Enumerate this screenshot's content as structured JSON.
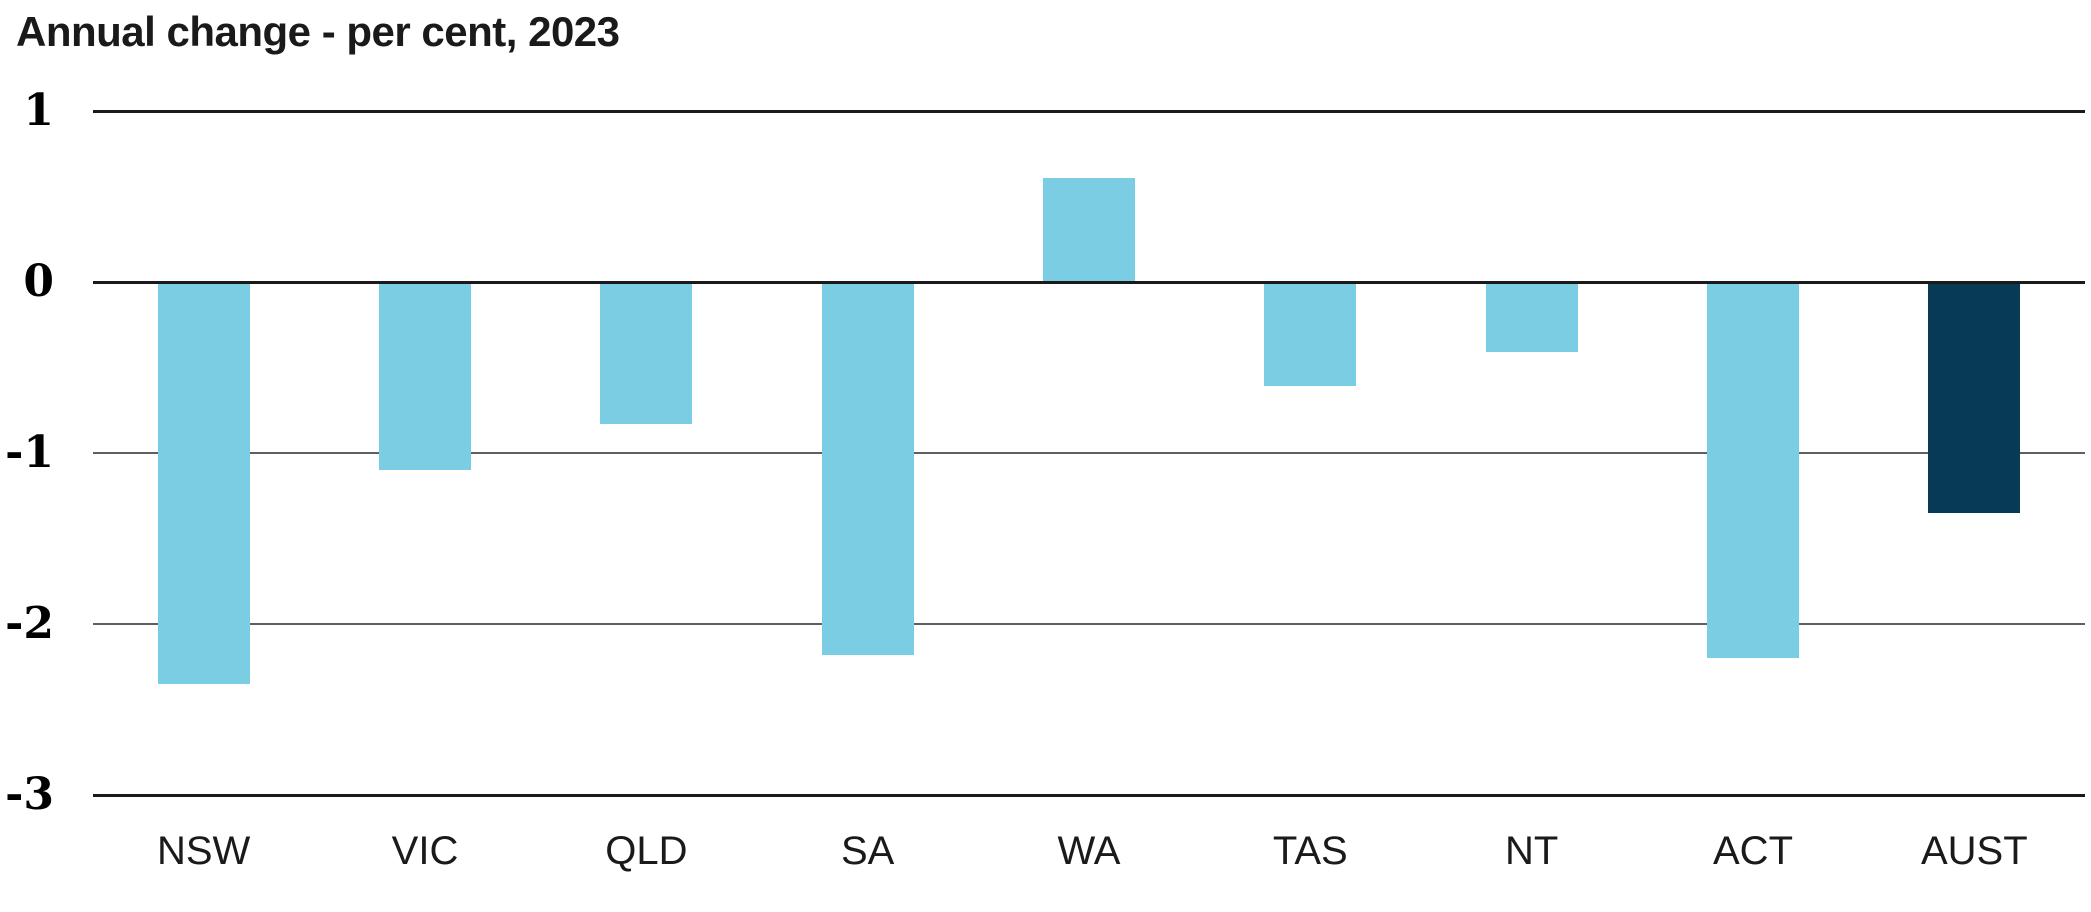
{
  "chart_data": {
    "type": "bar",
    "title": "Annual change - per cent, 2023",
    "categories": [
      "NSW",
      "VIC",
      "QLD",
      "SA",
      "WA",
      "TAS",
      "NT",
      "ACT",
      "AUST"
    ],
    "values": [
      -2.35,
      -1.1,
      -0.83,
      -2.18,
      0.61,
      -0.61,
      -0.41,
      -2.2,
      -1.35
    ],
    "xlabel": "",
    "ylabel": "",
    "ylim": [
      -3,
      1
    ],
    "yticks": [
      1,
      0,
      -1,
      -2,
      -3
    ],
    "grid": true,
    "legend_position": "none",
    "bar_color": "#7ACDE2",
    "highlight_category": "AUST",
    "highlight_color": "#073B55",
    "gridline_minor_color": "#5F5F5F",
    "gridline_major_color": "#1A1A1A",
    "major_gridlines_at": [
      1,
      0,
      -3
    ]
  }
}
